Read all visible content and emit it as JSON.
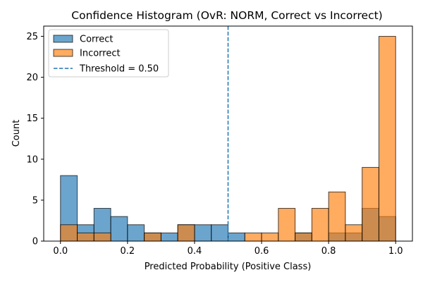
{
  "chart_data": {
    "type": "bar",
    "title": "Confidence Histogram (OvR: NORM, Correct vs Incorrect)",
    "xlabel": "Predicted Probability (Positive Class)",
    "ylabel": "Count",
    "xlim": [
      -0.05,
      1.05
    ],
    "ylim": [
      0,
      26.25
    ],
    "xticks": [
      "0.0",
      "0.2",
      "0.4",
      "0.6",
      "0.8",
      "1.0"
    ],
    "yticks": [
      "0",
      "5",
      "10",
      "15",
      "20",
      "25"
    ],
    "bin_edges": [
      0.0,
      0.05,
      0.1,
      0.15,
      0.2,
      0.25,
      0.3,
      0.35,
      0.4,
      0.45,
      0.5,
      0.55,
      0.6,
      0.65,
      0.7,
      0.75,
      0.8,
      0.85,
      0.9,
      0.95,
      1.0
    ],
    "series": [
      {
        "name": "Correct",
        "color": "#1f77b4",
        "values": [
          8,
          2,
          4,
          3,
          2,
          1,
          1,
          2,
          2,
          2,
          1,
          0,
          0,
          0,
          1,
          0,
          1,
          1,
          4,
          3
        ]
      },
      {
        "name": "Incorrect",
        "color": "#ff7f0e",
        "values": [
          2,
          1,
          1,
          0,
          0,
          1,
          0,
          2,
          0,
          0,
          0,
          1,
          1,
          4,
          1,
          4,
          6,
          2,
          9,
          25
        ]
      }
    ],
    "threshold": {
      "label": "Threshold = 0.50",
      "value": 0.5,
      "color": "#1f77b4"
    },
    "legend_position": "top-left",
    "grid": false
  }
}
